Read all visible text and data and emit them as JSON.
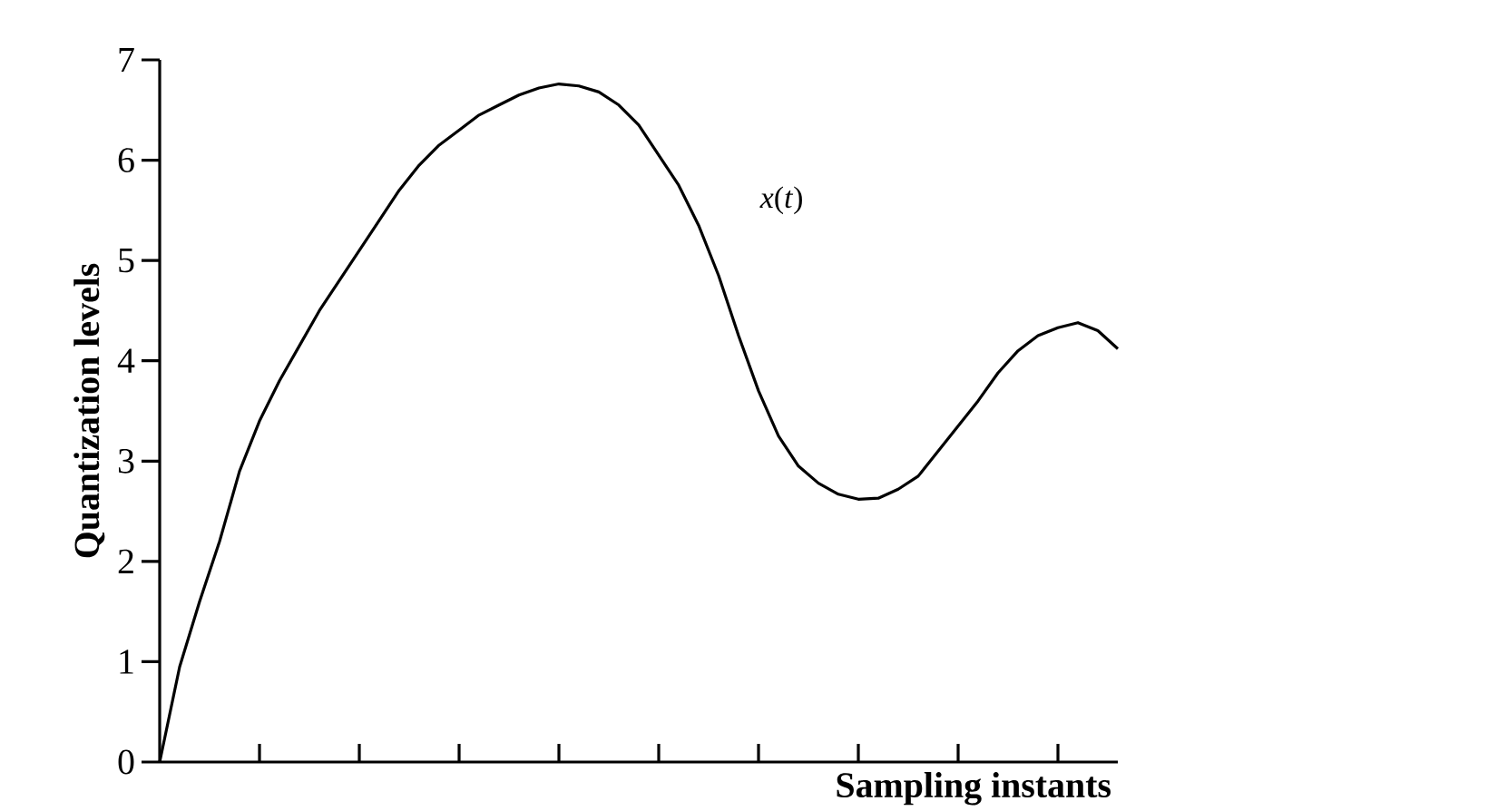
{
  "chart_data": {
    "type": "line",
    "xlabel": "Sampling instants",
    "ylabel": "Quantization levels",
    "ylim": [
      0,
      7
    ],
    "categories": [
      null,
      null,
      null,
      null,
      null,
      null,
      null,
      null,
      null,
      null,
      null,
      null,
      null,
      null,
      null,
      null,
      null,
      null,
      null,
      null,
      null,
      null,
      null,
      null,
      null,
      null,
      null,
      null,
      null,
      null,
      null,
      null,
      null,
      null,
      null,
      null,
      null,
      null,
      null,
      null,
      null,
      null,
      null,
      null,
      null,
      null,
      null,
      null,
      null
    ],
    "yticks": [
      0,
      1,
      2,
      3,
      4,
      5,
      6,
      7
    ],
    "series": [
      {
        "name": "*x*(*t*)",
        "color": "#000000",
        "values": [
          0,
          0.95,
          1.6,
          2.2,
          2.9,
          3.4,
          3.8,
          4.15,
          4.5,
          4.8,
          5.1,
          5.4,
          5.7,
          5.95,
          6.15,
          6.3,
          6.45,
          6.55,
          6.65,
          6.72,
          6.76,
          6.74,
          6.68,
          6.55,
          6.35,
          6.05,
          5.75,
          5.35,
          4.85,
          4.25,
          3.7,
          3.25,
          2.95,
          2.78,
          2.67,
          2.62,
          2.63,
          2.72,
          2.85,
          3.1,
          3.35,
          3.6,
          3.88,
          4.1,
          4.25,
          4.33,
          4.38,
          4.3,
          4.12
        ]
      }
    ]
  }
}
